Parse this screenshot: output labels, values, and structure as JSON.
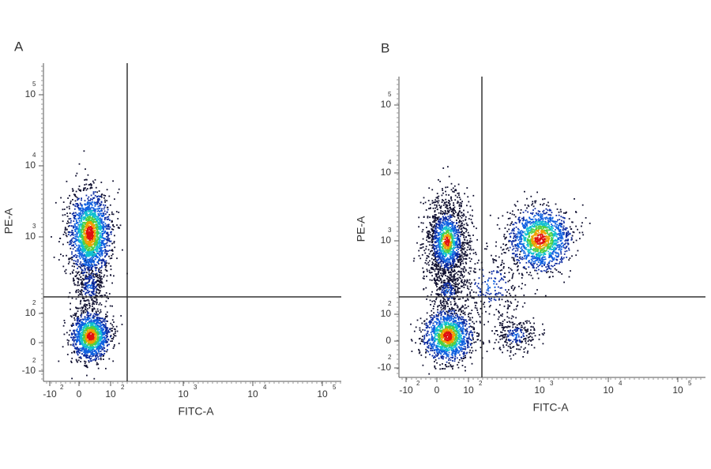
{
  "figure": {
    "panels": [
      {
        "label": "A",
        "x_label": "FITC-A",
        "y_label": "PE-A",
        "x_ticks": [
          {
            "base": "-10",
            "exp": "2"
          },
          {
            "base": "0"
          },
          {
            "base": "10",
            "exp": "2"
          },
          {
            "base": "10",
            "exp": "3"
          },
          {
            "base": "10",
            "exp": "4"
          },
          {
            "base": "10",
            "exp": "5"
          }
        ],
        "y_ticks": [
          {
            "base": "-10",
            "exp": "2"
          },
          {
            "base": "0"
          },
          {
            "base": "10",
            "exp": "2"
          },
          {
            "base": "10",
            "exp": "3"
          },
          {
            "base": "10",
            "exp": "4"
          },
          {
            "base": "10",
            "exp": "5"
          }
        ]
      },
      {
        "label": "B",
        "x_label": "FITC-A",
        "y_label": "PE-A",
        "x_ticks": [
          {
            "base": "-10",
            "exp": "2"
          },
          {
            "base": "0"
          },
          {
            "base": "10",
            "exp": "2"
          },
          {
            "base": "10",
            "exp": "3"
          },
          {
            "base": "10",
            "exp": "4"
          },
          {
            "base": "10",
            "exp": "5"
          }
        ],
        "y_ticks": [
          {
            "base": "-10",
            "exp": "2"
          },
          {
            "base": "0"
          },
          {
            "base": "10",
            "exp": "2"
          },
          {
            "base": "10",
            "exp": "3"
          },
          {
            "base": "10",
            "exp": "4"
          },
          {
            "base": "10",
            "exp": "5"
          }
        ]
      }
    ]
  }
}
